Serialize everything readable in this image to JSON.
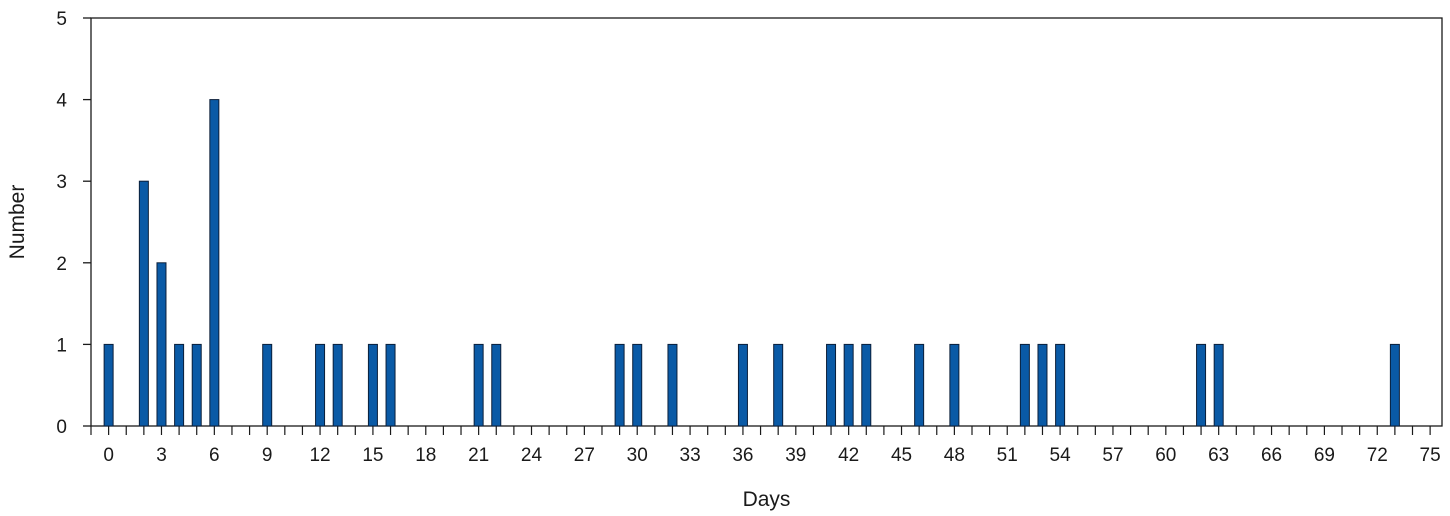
{
  "chart_data": {
    "type": "bar",
    "xlabel": "Days",
    "ylabel": "Number",
    "xlim": [
      -1,
      75.5
    ],
    "ylim": [
      0,
      5
    ],
    "x_ticks": [
      0,
      3,
      6,
      9,
      12,
      15,
      18,
      21,
      24,
      27,
      30,
      33,
      36,
      39,
      42,
      45,
      48,
      51,
      54,
      57,
      60,
      63,
      66,
      69,
      72,
      75
    ],
    "y_ticks": [
      0,
      1,
      2,
      3,
      4,
      5
    ],
    "grid": false,
    "bar_color": "#0a5aa6",
    "bar_edge_color": "#0b1f3a",
    "x": [
      0,
      2,
      3,
      4,
      5,
      6,
      9,
      12,
      13,
      15,
      16,
      21,
      22,
      29,
      30,
      32,
      36,
      38,
      41,
      42,
      43,
      46,
      48,
      52,
      53,
      54,
      62,
      63,
      73
    ],
    "values": [
      1,
      3,
      2,
      1,
      1,
      4,
      1,
      1,
      1,
      1,
      1,
      1,
      1,
      1,
      1,
      1,
      1,
      1,
      1,
      1,
      1,
      1,
      1,
      1,
      1,
      1,
      1,
      1,
      1
    ]
  }
}
